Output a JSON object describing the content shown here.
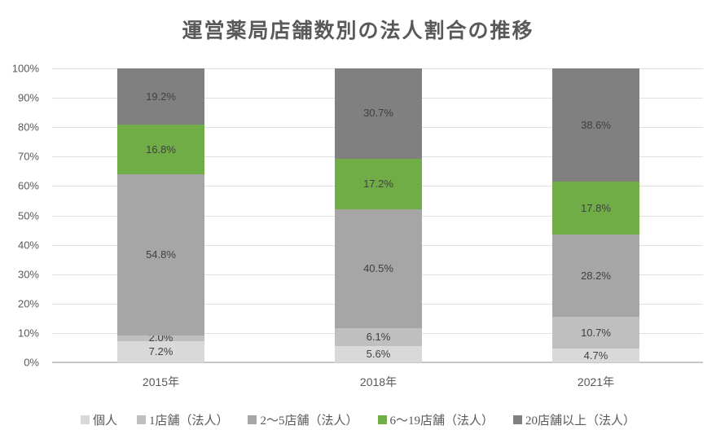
{
  "title": "運営薬局店舗数別の法人割合の推移",
  "chart_data": {
    "type": "bar",
    "stacked": "percent",
    "title": "運営薬局店舗数別の法人割合の推移",
    "categories": [
      "2015年",
      "2018年",
      "2021年"
    ],
    "series": [
      {
        "name": "個人",
        "color": "#D9D9D9",
        "values": [
          7.2,
          5.6,
          4.7
        ],
        "labels": [
          "7.2%",
          "5.6%",
          "4.7%"
        ]
      },
      {
        "name": "1店舗（法人）",
        "color": "#BFBFBF",
        "values": [
          2.0,
          6.1,
          10.7
        ],
        "labels": [
          "2.0%",
          "6.1%",
          "10.7%"
        ]
      },
      {
        "name": "2〜5店舗（法人）",
        "color": "#A6A6A6",
        "values": [
          54.8,
          40.5,
          28.2
        ],
        "labels": [
          "54.8%",
          "40.5%",
          "28.2%"
        ]
      },
      {
        "name": "6〜19店舗（法人）",
        "color": "#70AD47",
        "values": [
          16.8,
          17.2,
          17.8
        ],
        "labels": [
          "16.8%",
          "17.2%",
          "17.8%"
        ]
      },
      {
        "name": "20店舗以上（法人）",
        "color": "#808080",
        "values": [
          19.2,
          30.7,
          38.6
        ],
        "labels": [
          "19.2%",
          "30.7%",
          "38.6%"
        ]
      }
    ],
    "y_ticks": [
      "0%",
      "10%",
      "20%",
      "30%",
      "40%",
      "50%",
      "60%",
      "70%",
      "80%",
      "90%",
      "100%"
    ],
    "ylim": [
      0,
      100
    ],
    "grid": true,
    "legend_position": "bottom",
    "colors": {
      "data_label_text": "#404040",
      "axis_text": "#595959",
      "gridline": "#E0E0E0",
      "axis_line": "#C6C6C6",
      "background": "#FFFFFF"
    }
  }
}
